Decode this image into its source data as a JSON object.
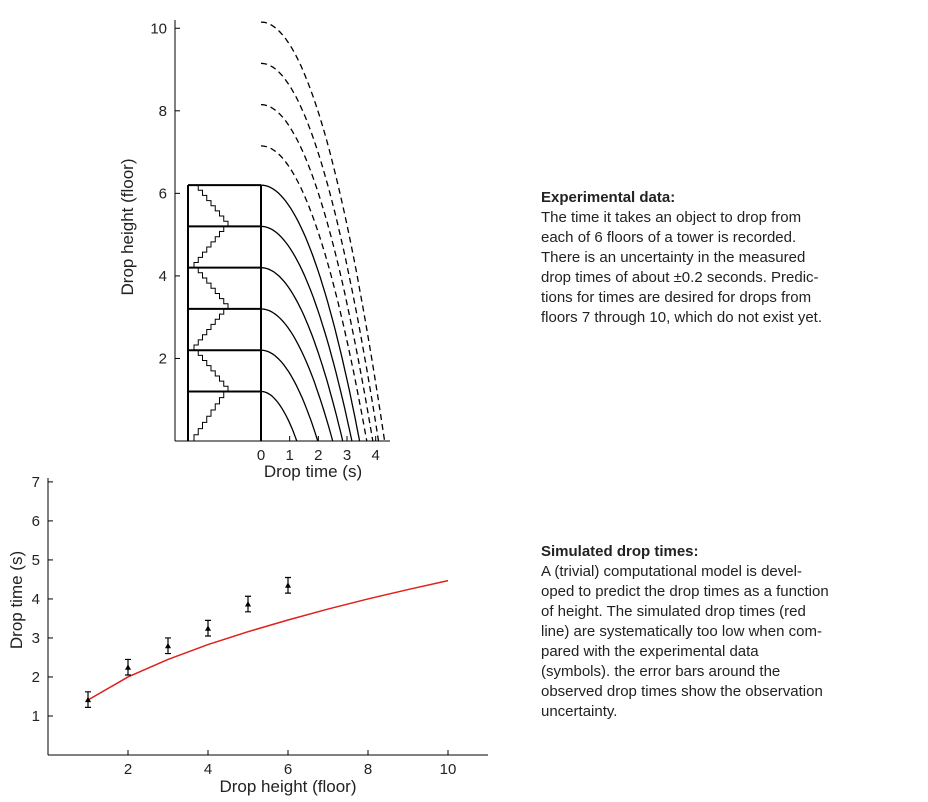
{
  "chart_data": [
    {
      "type": "drop-curves",
      "xlabel": "Drop time (s)",
      "ylabel": "Drop height (floor)",
      "floor_heights": [
        1.2,
        2.2,
        3.2,
        4.2,
        5.2,
        6.2
      ],
      "drop_heights": [
        1.2,
        2.2,
        3.2,
        4.2,
        5.2,
        6.2,
        7.15,
        8.15,
        9.15,
        10.15
      ],
      "drop_times": [
        1.25,
        1.98,
        2.5,
        2.85,
        3.17,
        3.44,
        3.69,
        3.9,
        4.1,
        4.31
      ],
      "xlim": [
        -3,
        4.5
      ],
      "ylim": [
        0,
        10.2
      ],
      "xticks": [
        0,
        1,
        2,
        3,
        4
      ],
      "yticks": [
        2,
        4,
        6,
        8,
        10
      ]
    },
    {
      "type": "scatter-line",
      "xlabel": "Drop height (floor)",
      "ylabel": "Drop time (s)",
      "observed": {
        "x": [
          1,
          2,
          3,
          4,
          5,
          6
        ],
        "values": [
          1.42,
          2.25,
          2.8,
          3.25,
          3.87,
          4.35
        ],
        "errors": [
          0.2,
          0.2,
          0.2,
          0.2,
          0.2,
          0.2
        ],
        "color": "#000000"
      },
      "simulated": {
        "x": [
          1,
          2,
          3,
          4,
          5,
          6,
          7,
          8,
          9,
          10
        ],
        "values": [
          1.41,
          2,
          2.45,
          2.83,
          3.16,
          3.46,
          3.74,
          4,
          4.24,
          4.47
        ],
        "color": "#e0201b"
      },
      "xlim": [
        0,
        11
      ],
      "ylim": [
        0,
        7.1
      ],
      "xticks": [
        2,
        4,
        6,
        8,
        10
      ],
      "yticks": [
        1,
        2,
        3,
        4,
        5,
        6,
        7
      ]
    }
  ],
  "notes": [
    {
      "heading": "Experimental data:",
      "lines": [
        "The time it takes an object to drop from",
        "each of 6 floors of a tower is recorded.",
        "There is an uncertainty in the measured",
        "drop times of about ±0.2 seconds. Predic-",
        "tions for times are desired for drops from",
        "floors 7 through 10, which do not exist yet."
      ]
    },
    {
      "heading": "Simulated drop times:",
      "lines": [
        "A (trivial) computational model is devel-",
        "oped to predict the drop times as a function",
        "of height. The simulated drop times (red",
        "line) are systematically too low when com-",
        "pared with the experimental data",
        "(symbols). the error bars around the",
        "observed drop times show the observation",
        "uncertainty."
      ]
    }
  ]
}
